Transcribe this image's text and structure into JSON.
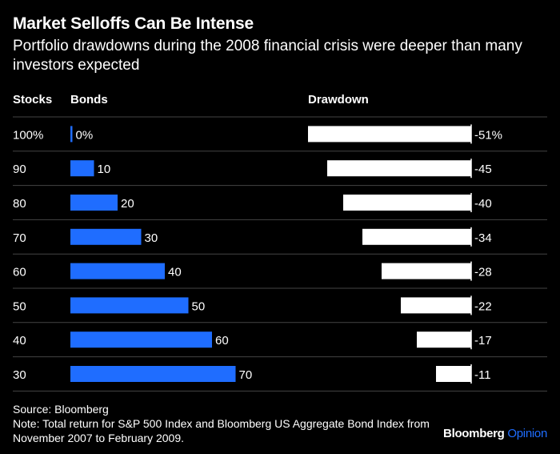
{
  "header": {
    "title": "Market Selloffs Can Be Intense",
    "subtitle": "Portfolio drawdowns during the 2008 financial crisis were deeper than many investors expected"
  },
  "columns": {
    "stocks": "Stocks",
    "bonds": "Bonds",
    "drawdown": "Drawdown"
  },
  "chart_data": {
    "type": "bar",
    "categories": [
      "100%",
      "90",
      "80",
      "70",
      "60",
      "50",
      "40",
      "30"
    ],
    "series": [
      {
        "name": "Bonds",
        "values": [
          0,
          10,
          20,
          30,
          40,
          50,
          60,
          70
        ],
        "labels": [
          "0%",
          "10",
          "20",
          "30",
          "40",
          "50",
          "60",
          "70"
        ],
        "color": "#1f6dff"
      },
      {
        "name": "Drawdown",
        "values": [
          -51,
          -45,
          -40,
          -34,
          -28,
          -22,
          -17,
          -11
        ],
        "labels": [
          "-51%",
          "-45",
          "-40",
          "-34",
          "-28",
          "-22",
          "-17",
          "-11"
        ],
        "color": "#ffffff"
      }
    ],
    "row_dividers": true
  },
  "footer": {
    "source": "Source: Bloomberg",
    "note": "Note: Total return for S&P 500 Index and Bloomberg US Aggregate Bond Index from November 2007 to February 2009."
  },
  "brand": {
    "name": "Bloomberg",
    "suffix": "Opinion"
  },
  "colors": {
    "background": "#000000",
    "bonds_bar": "#1f6dff",
    "drawdown_bar": "#ffffff",
    "divider": "#444444"
  }
}
